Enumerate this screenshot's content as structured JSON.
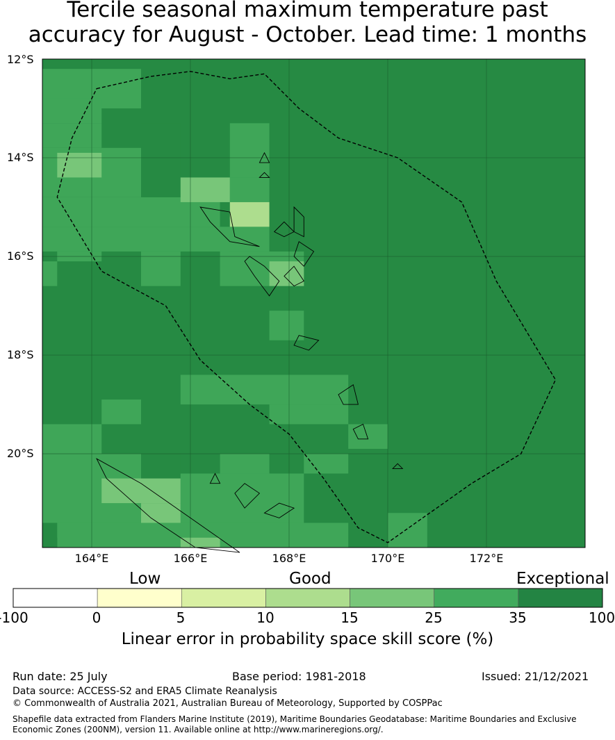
{
  "title": {
    "line1": "Tercile seasonal maximum temperature past",
    "line2": "accuracy for August - October. Lead time: 1 months"
  },
  "map": {
    "lon_range": [
      163.0,
      174.0
    ],
    "lat_range": [
      -21.9,
      -12.0
    ],
    "lat_ticks": [
      {
        "value": -12,
        "label": "12°S"
      },
      {
        "value": -14,
        "label": "14°S"
      },
      {
        "value": -16,
        "label": "16°S"
      },
      {
        "value": -18,
        "label": "18°S"
      },
      {
        "value": -20,
        "label": "20°S"
      }
    ],
    "lon_ticks": [
      {
        "value": 164,
        "label": "164°E"
      },
      {
        "value": 166,
        "label": "166°E"
      },
      {
        "value": 168,
        "label": "168°E"
      },
      {
        "value": 170,
        "label": "170°E"
      },
      {
        "value": 172,
        "label": "172°E"
      }
    ],
    "base_color": "#268a43",
    "cells": [
      {
        "lon": [
          163.0,
          164.0
        ],
        "lat": [
          -13.0,
          -12.2
        ],
        "color": "#3fa658"
      },
      {
        "lon": [
          164.0,
          165.0
        ],
        "lat": [
          -13.0,
          -12.2
        ],
        "color": "#3fa658"
      },
      {
        "lon": [
          163.0,
          164.2
        ],
        "lat": [
          -13.3,
          -12.8
        ],
        "color": "#3fa658"
      },
      {
        "lon": [
          163.0,
          164.2
        ],
        "lat": [
          -13.8,
          -13.3
        ],
        "color": "#3fa658"
      },
      {
        "lon": [
          163.0,
          165.0
        ],
        "lat": [
          -14.8,
          -13.8
        ],
        "color": "#3fa658"
      },
      {
        "lon": [
          163.3,
          164.2
        ],
        "lat": [
          -14.4,
          -13.9
        ],
        "color": "#78c679"
      },
      {
        "lon": [
          163.0,
          166.6
        ],
        "lat": [
          -15.4,
          -14.8
        ],
        "color": "#3fa658"
      },
      {
        "lon": [
          165.0,
          165.8
        ],
        "lat": [
          -14.8,
          -13.3
        ],
        "color": "#268a43"
      },
      {
        "lon": [
          166.8,
          167.6
        ],
        "lat": [
          -14.4,
          -13.3
        ],
        "color": "#3fa658"
      },
      {
        "lon": [
          166.8,
          167.6
        ],
        "lat": [
          -14.9,
          -14.4
        ],
        "color": "#3fa658"
      },
      {
        "lon": [
          165.8,
          166.8
        ],
        "lat": [
          -14.9,
          -14.4
        ],
        "color": "#78c679"
      },
      {
        "lon": [
          166.8,
          167.6
        ],
        "lat": [
          -15.4,
          -14.9
        ],
        "color": "#addd8e"
      },
      {
        "lon": [
          163.0,
          166.8
        ],
        "lat": [
          -15.9,
          -15.4
        ],
        "color": "#3fa658"
      },
      {
        "lon": [
          163.3,
          164.2
        ],
        "lat": [
          -16.1,
          -15.9
        ],
        "color": "#3fa658"
      },
      {
        "lon": [
          165.0,
          165.8
        ],
        "lat": [
          -16.6,
          -15.9
        ],
        "color": "#3fa658"
      },
      {
        "lon": [
          163.0,
          163.3
        ],
        "lat": [
          -16.6,
          -16.1
        ],
        "color": "#3fa658"
      },
      {
        "lon": [
          166.6,
          167.6
        ],
        "lat": [
          -15.9,
          -15.4
        ],
        "color": "#3fa658"
      },
      {
        "lon": [
          166.6,
          168.3
        ],
        "lat": [
          -16.6,
          -15.9
        ],
        "color": "#3fa658"
      },
      {
        "lon": [
          167.6,
          168.3
        ],
        "lat": [
          -16.6,
          -16.1
        ],
        "color": "#78c679"
      },
      {
        "lon": [
          167.6,
          168.3
        ],
        "lat": [
          -17.7,
          -17.1
        ],
        "color": "#3fa658"
      },
      {
        "lon": [
          165.8,
          169.2
        ],
        "lat": [
          -19.0,
          -18.4
        ],
        "color": "#3fa658"
      },
      {
        "lon": [
          167.6,
          169.2
        ],
        "lat": [
          -19.4,
          -19.0
        ],
        "color": "#3fa658"
      },
      {
        "lon": [
          169.2,
          170.0
        ],
        "lat": [
          -19.9,
          -19.4
        ],
        "color": "#3fa658"
      },
      {
        "lon": [
          164.2,
          165.0
        ],
        "lat": [
          -19.4,
          -18.9
        ],
        "color": "#3fa658"
      },
      {
        "lon": [
          163.0,
          164.2
        ],
        "lat": [
          -20.4,
          -19.4
        ],
        "color": "#3fa658"
      },
      {
        "lon": [
          163.0,
          165.0
        ],
        "lat": [
          -21.4,
          -20.0
        ],
        "color": "#3fa658"
      },
      {
        "lon": [
          165.0,
          165.8
        ],
        "lat": [
          -20.4,
          -20.0
        ],
        "color": "#268a43"
      },
      {
        "lon": [
          166.6,
          167.6
        ],
        "lat": [
          -20.4,
          -20.0
        ],
        "color": "#3fa658"
      },
      {
        "lon": [
          168.3,
          169.2
        ],
        "lat": [
          -20.4,
          -20.0
        ],
        "color": "#3fa658"
      },
      {
        "lon": [
          165.8,
          168.3
        ],
        "lat": [
          -21.4,
          -20.4
        ],
        "color": "#3fa658"
      },
      {
        "lon": [
          164.2,
          165.8
        ],
        "lat": [
          -21.0,
          -20.5
        ],
        "color": "#78c679"
      },
      {
        "lon": [
          165.0,
          165.8
        ],
        "lat": [
          -21.7,
          -21.0
        ],
        "color": "#78c679"
      },
      {
        "lon": [
          163.3,
          169.2
        ],
        "lat": [
          -21.9,
          -21.4
        ],
        "color": "#3fa658"
      },
      {
        "lon": [
          165.8,
          166.6
        ],
        "lat": [
          -21.9,
          -21.7
        ],
        "color": "#78c679"
      },
      {
        "lon": [
          170.0,
          170.8
        ],
        "lat": [
          -21.9,
          -21.2
        ],
        "color": "#3fa658"
      },
      {
        "lon": [
          163.0,
          163.3
        ],
        "lat": [
          -21.9,
          -21.7
        ],
        "color": "#268a43"
      }
    ],
    "eez_boundary": [
      [
        164.1,
        -12.6
      ],
      [
        165.2,
        -12.35
      ],
      [
        166.0,
        -12.25
      ],
      [
        166.8,
        -12.4
      ],
      [
        167.5,
        -12.3
      ],
      [
        168.2,
        -13.0
      ],
      [
        169.0,
        -13.6
      ],
      [
        170.2,
        -14.0
      ],
      [
        171.5,
        -14.9
      ],
      [
        172.2,
        -16.5
      ],
      [
        173.4,
        -18.5
      ],
      [
        172.7,
        -20.0
      ],
      [
        171.7,
        -20.6
      ],
      [
        170.0,
        -21.8
      ],
      [
        169.4,
        -21.5
      ],
      [
        168.7,
        -20.5
      ],
      [
        168.0,
        -19.6
      ],
      [
        167.2,
        -19.0
      ],
      [
        166.2,
        -18.1
      ],
      [
        165.5,
        -17.0
      ],
      [
        164.2,
        -16.3
      ],
      [
        163.3,
        -14.8
      ],
      [
        163.6,
        -13.6
      ]
    ],
    "islands": [
      [
        [
          166.2,
          -15.0
        ],
        [
          166.8,
          -15.1
        ],
        [
          166.9,
          -15.6
        ],
        [
          167.4,
          -15.8
        ],
        [
          166.8,
          -15.7
        ],
        [
          166.4,
          -15.3
        ]
      ],
      [
        [
          167.9,
          -15.3
        ],
        [
          168.1,
          -15.5
        ],
        [
          167.9,
          -15.6
        ],
        [
          167.7,
          -15.5
        ]
      ],
      [
        [
          168.1,
          -15.0
        ],
        [
          168.3,
          -15.2
        ],
        [
          168.3,
          -15.6
        ],
        [
          168.1,
          -15.5
        ]
      ],
      [
        [
          168.2,
          -15.7
        ],
        [
          168.5,
          -15.9
        ],
        [
          168.3,
          -16.2
        ],
        [
          168.1,
          -16.0
        ]
      ],
      [
        [
          167.2,
          -16.0
        ],
        [
          167.5,
          -16.2
        ],
        [
          167.8,
          -16.5
        ],
        [
          167.6,
          -16.8
        ],
        [
          167.3,
          -16.4
        ],
        [
          167.1,
          -16.1
        ]
      ],
      [
        [
          168.1,
          -16.2
        ],
        [
          168.3,
          -16.5
        ],
        [
          168.1,
          -16.6
        ],
        [
          167.9,
          -16.4
        ]
      ],
      [
        [
          168.2,
          -17.6
        ],
        [
          168.6,
          -17.7
        ],
        [
          168.4,
          -17.9
        ],
        [
          168.1,
          -17.8
        ]
      ],
      [
        [
          169.3,
          -18.6
        ],
        [
          169.4,
          -19.0
        ],
        [
          169.1,
          -19.0
        ],
        [
          169.0,
          -18.8
        ]
      ],
      [
        [
          169.5,
          -19.4
        ],
        [
          169.6,
          -19.7
        ],
        [
          169.4,
          -19.7
        ],
        [
          169.3,
          -19.5
        ]
      ],
      [
        [
          164.1,
          -20.1
        ],
        [
          165.0,
          -20.6
        ],
        [
          166.0,
          -21.3
        ],
        [
          167.0,
          -22.0
        ],
        [
          166.1,
          -21.9
        ],
        [
          165.2,
          -21.3
        ],
        [
          164.3,
          -20.5
        ]
      ],
      [
        [
          167.8,
          -21.0
        ],
        [
          168.1,
          -21.1
        ],
        [
          167.8,
          -21.3
        ],
        [
          167.5,
          -21.2
        ]
      ],
      [
        [
          167.1,
          -20.6
        ],
        [
          167.4,
          -20.8
        ],
        [
          167.1,
          -21.1
        ],
        [
          166.9,
          -20.8
        ]
      ],
      [
        [
          166.5,
          -20.4
        ],
        [
          166.6,
          -20.6
        ],
        [
          166.4,
          -20.6
        ]
      ],
      [
        [
          170.2,
          -20.2
        ],
        [
          170.3,
          -20.3
        ],
        [
          170.1,
          -20.3
        ]
      ],
      [
        [
          167.5,
          -13.9
        ],
        [
          167.6,
          -14.1
        ],
        [
          167.4,
          -14.1
        ]
      ],
      [
        [
          167.5,
          -14.3
        ],
        [
          167.6,
          -14.4
        ],
        [
          167.4,
          -14.4
        ]
      ]
    ]
  },
  "legend": {
    "quality_labels": [
      "Low",
      "Good",
      "Exceptional"
    ],
    "ticks": [
      "-100",
      "0",
      "5",
      "10",
      "15",
      "25",
      "35",
      "100"
    ],
    "colors": [
      "#ffffff",
      "#ffffcc",
      "#d9f0a3",
      "#addd8e",
      "#78c679",
      "#41ab5d",
      "#238443"
    ],
    "label": "Linear error in probability space skill score (%)"
  },
  "footer": {
    "run_date": "Run date: 25 July",
    "base_period": "Base period: 1981-2018",
    "issued": "Issued: 21/12/2021",
    "data_source": "Data source: ACCESS-S2 and ERA5 Climate Reanalysis",
    "copyright": "© Commonwealth of Australia 2021, Australian Bureau of Meteorology, Supported by COSPPac",
    "shapefile_line1": "Shapefile data extracted from Flanders Marine Institute (2019), Maritime Boundaries Geodatabase: Maritime Boundaries and Exclusive",
    "shapefile_line2": "Economic Zones (200NM), version 11. Available online at http://www.marineregions.org/."
  }
}
